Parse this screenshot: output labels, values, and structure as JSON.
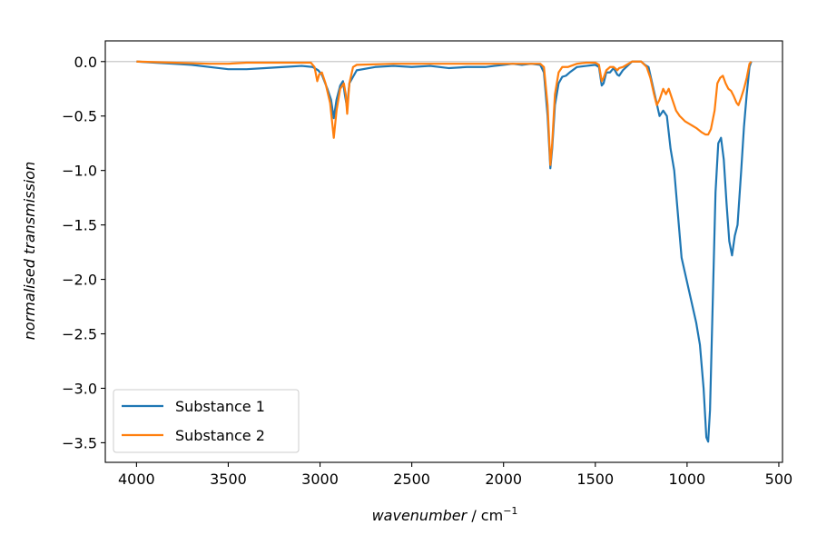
{
  "chart_data": {
    "type": "line",
    "title": "",
    "xlabel_italic": "wavenumber",
    "xlabel_unit": " / cm",
    "xlabel_exponent": "−1",
    "ylabel": "normalised transmission",
    "xlim": [
      4170,
      480
    ],
    "ylim": [
      -3.68,
      0.19
    ],
    "xaxis_inverted": true,
    "x_ticks": [
      {
        "value": 4000,
        "label": "4000"
      },
      {
        "value": 3500,
        "label": "3500"
      },
      {
        "value": 3000,
        "label": "3000"
      },
      {
        "value": 2500,
        "label": "2500"
      },
      {
        "value": 2000,
        "label": "2000"
      },
      {
        "value": 1500,
        "label": "1500"
      },
      {
        "value": 1000,
        "label": "1000"
      },
      {
        "value": 500,
        "label": "500"
      }
    ],
    "y_ticks": [
      {
        "value": 0.0,
        "label": "0.0"
      },
      {
        "value": -0.5,
        "label": "−0.5"
      },
      {
        "value": -1.0,
        "label": "−1.0"
      },
      {
        "value": -1.5,
        "label": "−1.5"
      },
      {
        "value": -2.0,
        "label": "−2.0"
      },
      {
        "value": -2.5,
        "label": "−2.5"
      },
      {
        "value": -3.0,
        "label": "−3.0"
      },
      {
        "value": -3.5,
        "label": "−3.5"
      }
    ],
    "reference_line": {
      "y": 0.0,
      "color": "#c8c8c8"
    },
    "grid": false,
    "legend_position": "lower-left",
    "series": [
      {
        "name": "Substance 1",
        "color": "#1f77b4",
        "points": [
          [
            4000,
            0.0
          ],
          [
            3900,
            -0.01
          ],
          [
            3800,
            -0.02
          ],
          [
            3700,
            -0.03
          ],
          [
            3600,
            -0.05
          ],
          [
            3500,
            -0.07
          ],
          [
            3400,
            -0.07
          ],
          [
            3300,
            -0.06
          ],
          [
            3200,
            -0.05
          ],
          [
            3100,
            -0.04
          ],
          [
            3040,
            -0.05
          ],
          [
            3010,
            -0.08
          ],
          [
            2990,
            -0.12
          ],
          [
            2960,
            -0.25
          ],
          [
            2940,
            -0.35
          ],
          [
            2925,
            -0.52
          ],
          [
            2910,
            -0.35
          ],
          [
            2890,
            -0.22
          ],
          [
            2875,
            -0.18
          ],
          [
            2865,
            -0.3
          ],
          [
            2853,
            -0.42
          ],
          [
            2840,
            -0.2
          ],
          [
            2800,
            -0.08
          ],
          [
            2700,
            -0.05
          ],
          [
            2600,
            -0.04
          ],
          [
            2500,
            -0.05
          ],
          [
            2400,
            -0.04
          ],
          [
            2300,
            -0.06
          ],
          [
            2200,
            -0.05
          ],
          [
            2100,
            -0.05
          ],
          [
            2050,
            -0.04
          ],
          [
            2000,
            -0.03
          ],
          [
            1950,
            -0.02
          ],
          [
            1900,
            -0.03
          ],
          [
            1850,
            -0.02
          ],
          [
            1800,
            -0.03
          ],
          [
            1780,
            -0.1
          ],
          [
            1760,
            -0.5
          ],
          [
            1745,
            -0.98
          ],
          [
            1735,
            -0.8
          ],
          [
            1720,
            -0.4
          ],
          [
            1700,
            -0.2
          ],
          [
            1680,
            -0.14
          ],
          [
            1660,
            -0.13
          ],
          [
            1640,
            -0.1
          ],
          [
            1600,
            -0.05
          ],
          [
            1550,
            -0.04
          ],
          [
            1500,
            -0.03
          ],
          [
            1480,
            -0.05
          ],
          [
            1465,
            -0.22
          ],
          [
            1455,
            -0.2
          ],
          [
            1440,
            -0.1
          ],
          [
            1420,
            -0.1
          ],
          [
            1400,
            -0.06
          ],
          [
            1380,
            -0.12
          ],
          [
            1370,
            -0.13
          ],
          [
            1350,
            -0.08
          ],
          [
            1300,
            0.0
          ],
          [
            1250,
            0.0
          ],
          [
            1230,
            -0.03
          ],
          [
            1210,
            -0.05
          ],
          [
            1190,
            -0.2
          ],
          [
            1170,
            -0.35
          ],
          [
            1150,
            -0.5
          ],
          [
            1130,
            -0.45
          ],
          [
            1110,
            -0.5
          ],
          [
            1090,
            -0.8
          ],
          [
            1070,
            -1.0
          ],
          [
            1050,
            -1.4
          ],
          [
            1030,
            -1.8
          ],
          [
            1010,
            -1.95
          ],
          [
            990,
            -2.1
          ],
          [
            970,
            -2.25
          ],
          [
            950,
            -2.4
          ],
          [
            930,
            -2.6
          ],
          [
            910,
            -3.0
          ],
          [
            895,
            -3.45
          ],
          [
            885,
            -3.49
          ],
          [
            875,
            -3.2
          ],
          [
            860,
            -2.2
          ],
          [
            845,
            -1.2
          ],
          [
            830,
            -0.75
          ],
          [
            815,
            -0.7
          ],
          [
            800,
            -0.9
          ],
          [
            785,
            -1.3
          ],
          [
            770,
            -1.65
          ],
          [
            755,
            -1.78
          ],
          [
            740,
            -1.6
          ],
          [
            725,
            -1.5
          ],
          [
            705,
            -1.0
          ],
          [
            690,
            -0.6
          ],
          [
            675,
            -0.3
          ],
          [
            660,
            -0.05
          ],
          [
            650,
            0.0
          ]
        ]
      },
      {
        "name": "Substance 2",
        "color": "#ff7f0e",
        "points": [
          [
            4000,
            0.0
          ],
          [
            3800,
            -0.01
          ],
          [
            3600,
            -0.02
          ],
          [
            3500,
            -0.02
          ],
          [
            3400,
            -0.01
          ],
          [
            3300,
            -0.01
          ],
          [
            3200,
            -0.01
          ],
          [
            3100,
            -0.01
          ],
          [
            3050,
            -0.01
          ],
          [
            3030,
            -0.05
          ],
          [
            3015,
            -0.18
          ],
          [
            3005,
            -0.12
          ],
          [
            2990,
            -0.1
          ],
          [
            2970,
            -0.2
          ],
          [
            2945,
            -0.38
          ],
          [
            2925,
            -0.7
          ],
          [
            2910,
            -0.45
          ],
          [
            2890,
            -0.25
          ],
          [
            2870,
            -0.2
          ],
          [
            2860,
            -0.3
          ],
          [
            2852,
            -0.48
          ],
          [
            2840,
            -0.2
          ],
          [
            2820,
            -0.05
          ],
          [
            2800,
            -0.03
          ],
          [
            2600,
            -0.02
          ],
          [
            2400,
            -0.02
          ],
          [
            2200,
            -0.02
          ],
          [
            2000,
            -0.02
          ],
          [
            1900,
            -0.02
          ],
          [
            1800,
            -0.02
          ],
          [
            1780,
            -0.05
          ],
          [
            1760,
            -0.4
          ],
          [
            1745,
            -0.95
          ],
          [
            1735,
            -0.75
          ],
          [
            1720,
            -0.3
          ],
          [
            1700,
            -0.1
          ],
          [
            1680,
            -0.05
          ],
          [
            1650,
            -0.05
          ],
          [
            1600,
            -0.02
          ],
          [
            1550,
            -0.01
          ],
          [
            1500,
            -0.01
          ],
          [
            1480,
            -0.03
          ],
          [
            1465,
            -0.18
          ],
          [
            1455,
            -0.15
          ],
          [
            1440,
            -0.08
          ],
          [
            1420,
            -0.05
          ],
          [
            1400,
            -0.05
          ],
          [
            1380,
            -0.08
          ],
          [
            1370,
            -0.06
          ],
          [
            1350,
            -0.05
          ],
          [
            1300,
            0.0
          ],
          [
            1250,
            0.0
          ],
          [
            1220,
            -0.05
          ],
          [
            1200,
            -0.15
          ],
          [
            1180,
            -0.3
          ],
          [
            1165,
            -0.4
          ],
          [
            1150,
            -0.35
          ],
          [
            1130,
            -0.25
          ],
          [
            1115,
            -0.3
          ],
          [
            1100,
            -0.25
          ],
          [
            1080,
            -0.35
          ],
          [
            1060,
            -0.45
          ],
          [
            1040,
            -0.5
          ],
          [
            1010,
            -0.55
          ],
          [
            980,
            -0.58
          ],
          [
            950,
            -0.61
          ],
          [
            920,
            -0.65
          ],
          [
            900,
            -0.67
          ],
          [
            885,
            -0.67
          ],
          [
            870,
            -0.62
          ],
          [
            850,
            -0.45
          ],
          [
            835,
            -0.2
          ],
          [
            820,
            -0.15
          ],
          [
            805,
            -0.13
          ],
          [
            790,
            -0.2
          ],
          [
            775,
            -0.25
          ],
          [
            760,
            -0.27
          ],
          [
            745,
            -0.32
          ],
          [
            730,
            -0.38
          ],
          [
            720,
            -0.4
          ],
          [
            705,
            -0.33
          ],
          [
            690,
            -0.25
          ],
          [
            675,
            -0.15
          ],
          [
            660,
            -0.02
          ],
          [
            650,
            0.0
          ]
        ]
      }
    ]
  }
}
